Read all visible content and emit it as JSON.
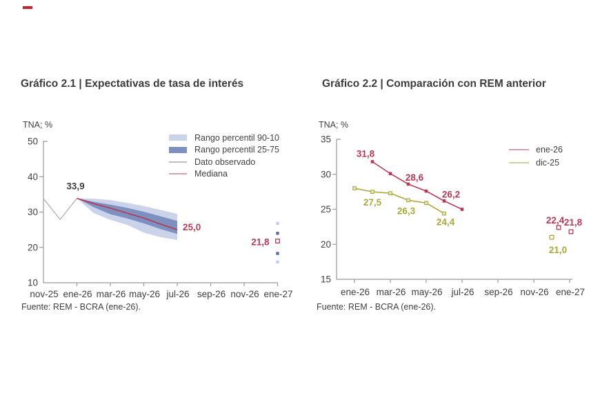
{
  "colors": {
    "accent_red": "#b43a55",
    "olive": "#a9a93b",
    "olive_marker_fill": "#e9e9c4",
    "band_light": "#cad3e9",
    "band_dark": "#7d90c0",
    "scatter_light": "#c2cce6",
    "scatter_dark": "#5f7097",
    "observed_gray": "#b4b4b4",
    "axis_gray": "#9a9a9a",
    "text_dark": "#3f3f3f",
    "legend_red_line": "#c98f9c",
    "legend_olive_line": "#c9c98f",
    "top_dash_red": "#c3242b"
  },
  "chart_data": [
    {
      "type": "line",
      "title": "Gráfico 2.1 | Expectativas de tasa de interés",
      "unit_label": "TNA; %",
      "source": "Fuente: REM - BCRA (ene-26).",
      "ylim": [
        10,
        50
      ],
      "yticks": [
        50,
        40,
        30,
        20,
        10
      ],
      "xticks": [
        "nov-25",
        "ene-26",
        "mar-26",
        "may-26",
        "jul-26",
        "sep-26",
        "nov-26",
        "ene-27"
      ],
      "legend": [
        {
          "label": "Rango percentil 90-10",
          "swatch": "band-light"
        },
        {
          "label": "Rango percentil 25-75",
          "swatch": "band-dark"
        },
        {
          "label": "Dato observado",
          "swatch": "line-gray"
        },
        {
          "label": "Mediana",
          "swatch": "line-red"
        }
      ],
      "observed": {
        "months": [
          "nov-25",
          "dic-25",
          "ene-26"
        ],
        "values": [
          33.8,
          27.9,
          33.9
        ]
      },
      "fan": {
        "months": [
          "ene-26",
          "feb-26",
          "mar-26",
          "abr-26",
          "may-26",
          "jun-26",
          "jul-26"
        ],
        "median": [
          33.9,
          32.4,
          31.1,
          29.7,
          28.3,
          26.6,
          25.0
        ],
        "p90": [
          33.9,
          33.8,
          33.4,
          32.6,
          31.7,
          30.6,
          29.5
        ],
        "p75": [
          33.9,
          32.9,
          32.1,
          31.2,
          30.1,
          28.8,
          27.5
        ],
        "p25": [
          33.9,
          31.4,
          29.4,
          28.2,
          26.8,
          25.2,
          23.8
        ],
        "p10": [
          33.9,
          29.7,
          27.8,
          26.4,
          24.2,
          22.9,
          22.1
        ]
      },
      "scatter": [
        {
          "month": "ene-27",
          "value": 26.8,
          "style": "band-light"
        },
        {
          "month": "ene-27",
          "value": 24.0,
          "style": "band-dark"
        },
        {
          "month": "ene-27",
          "value": 21.8,
          "style": "median-open"
        },
        {
          "month": "ene-27",
          "value": 18.3,
          "style": "band-dark"
        },
        {
          "month": "ene-27",
          "value": 15.9,
          "style": "band-light"
        }
      ],
      "labels": [
        {
          "text": "33,9",
          "month": "ene-26",
          "value": 33.9,
          "color": "dark"
        },
        {
          "text": "25,0",
          "month": "jul-26",
          "value": 25.0,
          "color": "red"
        },
        {
          "text": "21,8",
          "month": "ene-27",
          "value": 21.8,
          "color": "red"
        }
      ]
    },
    {
      "type": "line",
      "title": "Gráfico 2.2 | Comparación con REM anterior",
      "unit_label": "TNA; %",
      "source": "Fuente: REM - BCRA (ene-26).",
      "ylim": [
        15,
        35
      ],
      "yticks": [
        35,
        30,
        25,
        20,
        15
      ],
      "xticks": [
        "ene-26",
        "mar-26",
        "may-26",
        "jul-26",
        "sep-26",
        "nov-26",
        "ene-27"
      ],
      "legend": [
        {
          "label": "ene-26",
          "swatch": "line-red"
        },
        {
          "label": "dic-25",
          "swatch": "line-olive"
        }
      ],
      "series": [
        {
          "name": "ene-26",
          "color": "red",
          "months": [
            "feb-26",
            "mar-26",
            "abr-26",
            "may-26",
            "jun-26",
            "jul-26"
          ],
          "values": [
            31.8,
            30.1,
            28.6,
            27.6,
            26.2,
            25.0
          ]
        },
        {
          "name": "dic-25",
          "color": "olive",
          "months": [
            "ene-26",
            "feb-26",
            "mar-26",
            "abr-26",
            "may-26",
            "jun-26"
          ],
          "values": [
            28.0,
            27.5,
            27.3,
            26.3,
            25.9,
            24.4
          ]
        }
      ],
      "scatter": [
        {
          "month": "dic-26",
          "value": 22.4,
          "style": "red-open"
        },
        {
          "month": "ene-27",
          "value": 21.8,
          "style": "red-open"
        },
        {
          "month": "dic-26",
          "value": 21.0,
          "style": "olive-open"
        }
      ],
      "labels": [
        {
          "text": "31,8",
          "month": "feb-26",
          "value": 31.8,
          "color": "red"
        },
        {
          "text": "28,6",
          "month": "abr-26",
          "value": 28.6,
          "color": "red"
        },
        {
          "text": "26,2",
          "month": "jun-26",
          "value": 26.2,
          "color": "red"
        },
        {
          "text": "27,5",
          "month": "feb-26",
          "value": 27.5,
          "color": "olive"
        },
        {
          "text": "26,3",
          "month": "abr-26",
          "value": 26.3,
          "color": "olive"
        },
        {
          "text": "24,4",
          "month": "jun-26",
          "value": 24.4,
          "color": "olive"
        },
        {
          "text": "22,4",
          "month": "dic-26",
          "value": 22.4,
          "color": "red"
        },
        {
          "text": "21,8",
          "month": "ene-27",
          "value": 21.8,
          "color": "red"
        },
        {
          "text": "21,0",
          "month": "dic-26",
          "value": 21.0,
          "color": "olive"
        }
      ]
    }
  ]
}
